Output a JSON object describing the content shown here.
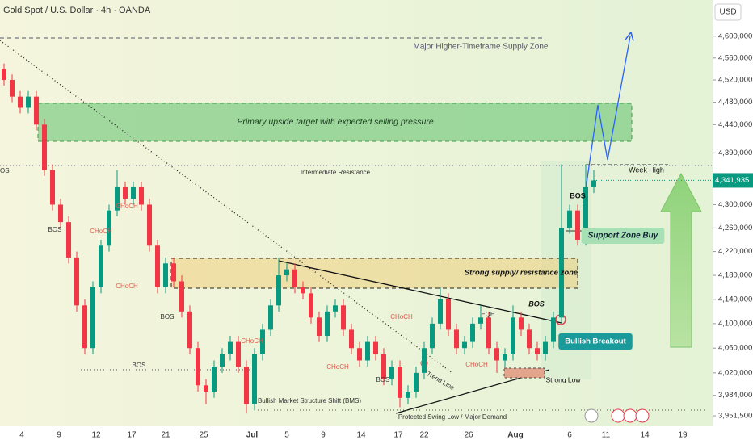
{
  "header": {
    "title": "Gold Spot / U.S. Dollar · 4h · OANDA",
    "currency": "USD"
  },
  "chart_data": {
    "type": "candlestick",
    "log_scale": true,
    "up_color": "#089981",
    "down_color": "#f23645",
    "ylim": [
      3935000,
      4667000
    ],
    "yticks": [
      {
        "value": 4600000,
        "label": "4,600,000"
      },
      {
        "value": 4560000,
        "label": "4,560,000"
      },
      {
        "value": 4520000,
        "label": "4,520,000"
      },
      {
        "value": 4480000,
        "label": "4,480,000"
      },
      {
        "value": 4440000,
        "label": "4,440,000"
      },
      {
        "value": 4390000,
        "label": "4,390,000"
      },
      {
        "value": 4300000,
        "label": "4,300,000"
      },
      {
        "value": 4260000,
        "label": "4,260,000"
      },
      {
        "value": 4220000,
        "label": "4,220,000"
      },
      {
        "value": 4180000,
        "label": "4,180,000"
      },
      {
        "value": 4140000,
        "label": "4,140,000"
      },
      {
        "value": 4100000,
        "label": "4,100,000"
      },
      {
        "value": 4060000,
        "label": "4,060,000"
      },
      {
        "value": 4020000,
        "label": "4,020,000"
      },
      {
        "value": 3984000,
        "label": "3,984,000"
      },
      {
        "value": 3951500,
        "label": "3,951,500"
      }
    ],
    "last_price": {
      "value": 4341935,
      "label": "4,341,935"
    },
    "x_labels": [
      "4",
      "9",
      "12",
      "17",
      "21",
      "25",
      "Jul",
      "5",
      "9",
      "14",
      "17",
      "22",
      "26",
      "Aug",
      "6",
      "11",
      "14",
      "19"
    ],
    "open": [
      4540000,
      4520000,
      4490000,
      4470000,
      4490000,
      4440000,
      4360000,
      4300000,
      4270000,
      4210000,
      4130000,
      4060000,
      4160000,
      4230000,
      4290000,
      4330000,
      4310000,
      4330000,
      4300000,
      4230000,
      4160000,
      4200000,
      4170000,
      4120000,
      4060000,
      4000000,
      3990000,
      4030000,
      4050000,
      4070000,
      4030000,
      3970000,
      4050000,
      4090000,
      4130000,
      4180000,
      4190000,
      4160000,
      4150000,
      4110000,
      4080000,
      4120000,
      4130000,
      4090000,
      4060000,
      4040000,
      4070000,
      4050000,
      4010000,
      4030000,
      3980000,
      3990000,
      4020000,
      4060000,
      4100000,
      4140000,
      4090000,
      4060000,
      4070000,
      4100000,
      4110000,
      4060000,
      4040000,
      4050000,
      4110000,
      4090000,
      4060000,
      4050000,
      4070000,
      4110000,
      4260000,
      4290000,
      4240000,
      4330000
    ],
    "high": [
      4550000,
      4530000,
      4500000,
      4500000,
      4500000,
      4450000,
      4370000,
      4310000,
      4280000,
      4220000,
      4140000,
      4170000,
      4240000,
      4300000,
      4360000,
      4340000,
      4340000,
      4340000,
      4310000,
      4240000,
      4210000,
      4210000,
      4180000,
      4130000,
      4070000,
      4010000,
      4040000,
      4060000,
      4080000,
      4080000,
      4040000,
      4060000,
      4100000,
      4140000,
      4210000,
      4200000,
      4200000,
      4170000,
      4160000,
      4120000,
      4130000,
      4140000,
      4140000,
      4100000,
      4070000,
      4080000,
      4080000,
      4060000,
      4040000,
      4040000,
      4000000,
      4030000,
      4070000,
      4110000,
      4160000,
      4150000,
      4100000,
      4080000,
      4110000,
      4130000,
      4120000,
      4070000,
      4060000,
      4130000,
      4120000,
      4100000,
      4070000,
      4080000,
      4120000,
      4370000,
      4300000,
      4300000,
      4370000,
      4360000
    ],
    "low": [
      4510000,
      4480000,
      4460000,
      4460000,
      4430000,
      4350000,
      4290000,
      4260000,
      4200000,
      4120000,
      4050000,
      4050000,
      4150000,
      4220000,
      4280000,
      4300000,
      4300000,
      4290000,
      4220000,
      4150000,
      4150000,
      4160000,
      4110000,
      4050000,
      3990000,
      3970000,
      3980000,
      4020000,
      4040000,
      4020000,
      3955000,
      3960000,
      4040000,
      4080000,
      4120000,
      4170000,
      4150000,
      4140000,
      4100000,
      4070000,
      4070000,
      4110000,
      4080000,
      4050000,
      4030000,
      4030000,
      4040000,
      4000000,
      4000000,
      3965000,
      3970000,
      3980000,
      4010000,
      4050000,
      4090000,
      4080000,
      4050000,
      4050000,
      4060000,
      4090000,
      4050000,
      4020000,
      4030000,
      4040000,
      4080000,
      4050000,
      4040000,
      4040000,
      4060000,
      4100000,
      4250000,
      4230000,
      4230000,
      4320000
    ],
    "close": [
      4520000,
      4490000,
      4470000,
      4490000,
      4440000,
      4360000,
      4300000,
      4270000,
      4210000,
      4130000,
      4060000,
      4160000,
      4230000,
      4290000,
      4330000,
      4310000,
      4330000,
      4300000,
      4230000,
      4160000,
      4200000,
      4170000,
      4120000,
      4060000,
      4000000,
      3990000,
      4030000,
      4050000,
      4070000,
      4030000,
      3970000,
      4050000,
      4090000,
      4130000,
      4180000,
      4190000,
      4160000,
      4150000,
      4110000,
      4080000,
      4120000,
      4130000,
      4090000,
      4060000,
      4040000,
      4070000,
      4050000,
      4010000,
      4030000,
      3980000,
      3990000,
      4020000,
      4060000,
      4100000,
      4140000,
      4090000,
      4060000,
      4070000,
      4100000,
      4110000,
      4060000,
      4040000,
      4050000,
      4110000,
      4090000,
      4060000,
      4050000,
      4070000,
      4110000,
      4260000,
      4290000,
      4240000,
      4330000,
      4341935
    ],
    "annotations": [
      "Major Higher-Timeframe Supply Zone",
      "Primary upside target with expected selling pressure",
      "Intermediate Resistance",
      "Week High",
      "Strong supply/ resistance zone",
      "BOS",
      "BOS",
      "BOS",
      "BOS",
      "BOS",
      "BOS",
      "CHoCH",
      "CHoCH",
      "CHoCH",
      "CHoCH",
      "CHoCH",
      "CHoCH",
      "CHoCH",
      "EQH",
      "Trend Line",
      "Strong Low",
      "Bullish Market Structure Shift (BMS)",
      "Protected Swing Low / Major Demand",
      "Support Zone Buy",
      "Bullish Breakout",
      "OS"
    ]
  }
}
